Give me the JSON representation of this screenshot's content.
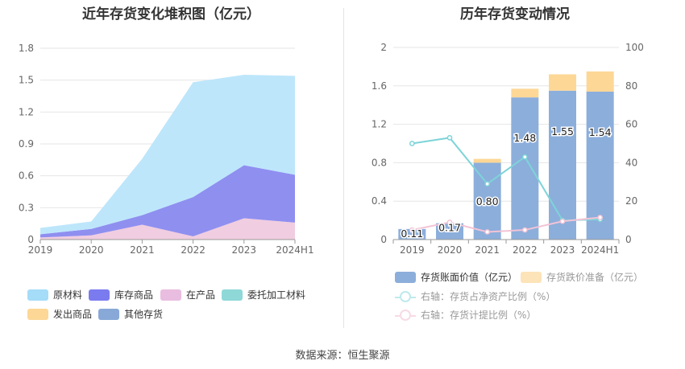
{
  "source_text": "数据来源：恒生聚源",
  "chart_data": [
    {
      "type": "area",
      "title": "近年存货变化堆积图（亿元）",
      "x": [
        "2019",
        "2020",
        "2021",
        "2022",
        "2023",
        "2024H1"
      ],
      "ylim": [
        0,
        1.8
      ],
      "yticks": [
        "0",
        "0.3",
        "0.6",
        "0.9",
        "1.2",
        "1.5",
        "1.8"
      ],
      "stacked": true,
      "series": [
        {
          "name": "在产品",
          "color": "#f0cde0",
          "values": [
            0.02,
            0.04,
            0.14,
            0.03,
            0.2,
            0.16
          ]
        },
        {
          "name": "委托加工材料",
          "color": "#8fd8d8",
          "values": [
            0,
            0,
            0,
            0,
            0,
            0
          ]
        },
        {
          "name": "发出商品",
          "color": "#fdd796",
          "values": [
            0,
            0,
            0,
            0,
            0,
            0
          ]
        },
        {
          "name": "其他存货",
          "color": "#88a9d8",
          "values": [
            0,
            0,
            0,
            0,
            0,
            0
          ]
        },
        {
          "name": "库存商品",
          "color": "#8f8ff0",
          "values": [
            0.03,
            0.06,
            0.09,
            0.37,
            0.5,
            0.45
          ]
        },
        {
          "name": "原材料",
          "color": "#bde6fb",
          "values": [
            0.06,
            0.07,
            0.53,
            1.08,
            0.85,
            0.93
          ]
        }
      ],
      "legend_order": [
        "原材料",
        "库存商品",
        "在产品",
        "委托加工材料",
        "发出商品",
        "其他存货"
      ],
      "legend_colors": {
        "原材料": "#a5dcf8",
        "库存商品": "#7b7bf0",
        "在产品": "#e9bde0",
        "委托加工材料": "#8fd8d8",
        "发出商品": "#fdd796",
        "其他存货": "#88a9d8"
      },
      "legend_position": "bottom"
    },
    {
      "type": "bar",
      "title": "历年存货变动情况",
      "categories": [
        "2019",
        "2020",
        "2021",
        "2022",
        "2023",
        "2024H1"
      ],
      "ylim_left": [
        0,
        2
      ],
      "yticks_left": [
        "0",
        "0.4",
        "0.8",
        "1.2",
        "1.6",
        "2"
      ],
      "ylim_right": [
        0,
        100
      ],
      "yticks_right": [
        "0",
        "20",
        "40",
        "60",
        "80",
        "100"
      ],
      "series": [
        {
          "name": "存货账面价值（亿元）",
          "color": "#8caedb",
          "axis": "left",
          "kind": "bar",
          "values": [
            0.11,
            0.17,
            0.8,
            1.48,
            1.55,
            1.54
          ],
          "labels": [
            "0.11",
            "0.17",
            "0.80",
            "1.48",
            "1.55",
            "1.54"
          ]
        },
        {
          "name": "存货跌价准备（亿元）",
          "color": "#fdd796",
          "axis": "left",
          "kind": "bar-stack",
          "values": [
            0,
            0,
            0.04,
            0.09,
            0.17,
            0.21
          ]
        },
        {
          "name": "右轴：存货占净资产比例（%）",
          "color": "#7dd4d8",
          "axis": "right",
          "kind": "line",
          "values": [
            50,
            53,
            29,
            43,
            10,
            10.5
          ]
        },
        {
          "name": "右轴：存货计提比例（%）",
          "color": "#f2c3d6",
          "axis": "right",
          "kind": "line",
          "values": [
            5,
            9,
            4,
            5,
            9.5,
            11.5
          ]
        }
      ],
      "legend_position": "bottom"
    }
  ]
}
